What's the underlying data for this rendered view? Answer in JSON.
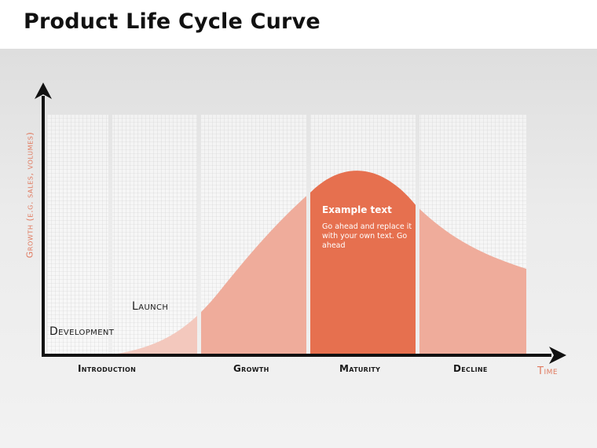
{
  "title": "Product Life Cycle Curve",
  "axes": {
    "y_label": "Growth (e.g. sales, volumes)",
    "x_label": "Time"
  },
  "stages": {
    "development": "Development",
    "launch": "Launch"
  },
  "phases": [
    {
      "label": "Introduction",
      "color": "#f3c8bd"
    },
    {
      "label": "Growth",
      "color": "#efac9b"
    },
    {
      "label": "Maturity",
      "color": "#e6704f"
    },
    {
      "label": "Decline",
      "color": "#efac9b"
    }
  ],
  "example": {
    "title": "Example text",
    "body": "Go ahead and replace it with your own text. Go ahead"
  },
  "colors": {
    "accent": "#e07a5f",
    "axis": "#111111"
  }
}
